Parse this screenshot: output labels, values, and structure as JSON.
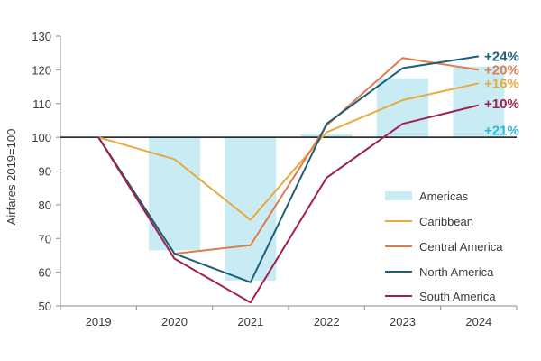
{
  "chart_data": {
    "type": "line",
    "categories": [
      "2019",
      "2020",
      "2021",
      "2022",
      "2023",
      "2024"
    ],
    "ylabel": "Airfares 2019=100",
    "ylim": [
      50,
      130
    ],
    "yticks": [
      50,
      60,
      70,
      80,
      90,
      100,
      110,
      120,
      130
    ],
    "baseline": 100,
    "legend_position": "right",
    "series": [
      {
        "name": "Americas",
        "kind": "bar",
        "color": "#c9ecf4",
        "values": [
          100,
          66.5,
          57.5,
          101,
          117.5,
          121
        ]
      },
      {
        "name": "Caribbean",
        "kind": "line",
        "color": "#e8a93d",
        "values": [
          100,
          93.5,
          75.5,
          101.5,
          111,
          116
        ]
      },
      {
        "name": "Central America",
        "kind": "line",
        "color": "#e07b4e",
        "values": [
          100,
          65.5,
          68,
          103.5,
          123.5,
          120
        ]
      },
      {
        "name": "North America",
        "kind": "line",
        "color": "#1d5f7a",
        "values": [
          100,
          65.5,
          57,
          104,
          120.5,
          124
        ]
      },
      {
        "name": "South America",
        "kind": "line",
        "color": "#a0204c",
        "values": [
          100,
          64,
          51,
          88,
          104,
          109.5
        ]
      }
    ],
    "annotations": [
      {
        "text": "+24%",
        "color": "#1d5f7a",
        "y": 124
      },
      {
        "text": "+20%",
        "color": "#e07b4e",
        "y": 120
      },
      {
        "text": "+16%",
        "color": "#e8a93d",
        "y": 116
      },
      {
        "text": "+10%",
        "color": "#a0204c",
        "y": 110
      },
      {
        "text": "+21%",
        "color": "#2fb6d8",
        "y": 102
      }
    ]
  }
}
